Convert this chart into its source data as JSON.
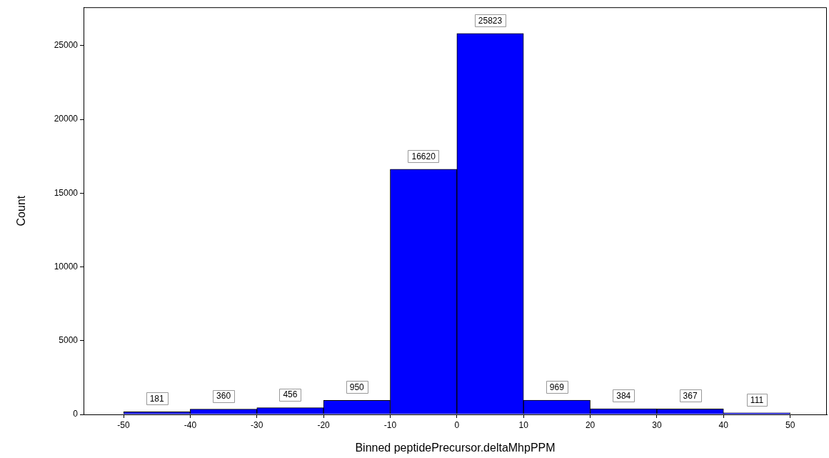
{
  "chart_data": {
    "type": "histogram",
    "xlabel": "Binned peptidePrecursor.deltaMhpPPM",
    "ylabel": "Count",
    "bins": [
      -50,
      -40,
      -30,
      -20,
      -10,
      0,
      10,
      20,
      30,
      40,
      50
    ],
    "values": [
      181,
      360,
      456,
      950,
      16620,
      25823,
      969,
      384,
      367,
      111
    ],
    "color": "#0000ff",
    "data_labels": true,
    "xlim": [
      -56,
      55.5
    ],
    "xticks": [
      -50,
      -40,
      -30,
      -20,
      -10,
      0,
      10,
      20,
      30,
      40,
      50
    ],
    "ylim": [
      0,
      27600
    ],
    "yticks": [
      0,
      5000,
      10000,
      15000,
      20000,
      25000
    ]
  }
}
